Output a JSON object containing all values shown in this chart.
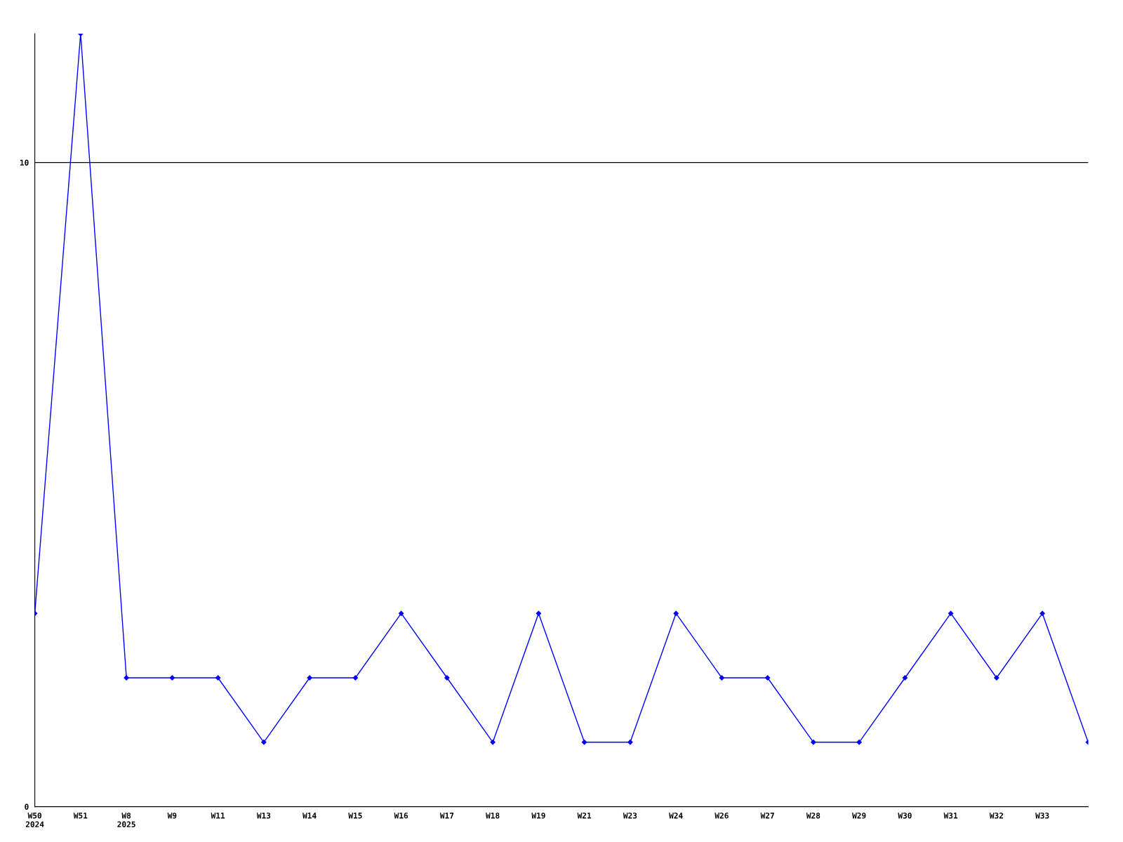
{
  "chart_data": {
    "type": "line",
    "categories": [
      "W50\n2024",
      "W51",
      "W8\n2025",
      "W9",
      "W11",
      "W13",
      "W14",
      "W15",
      "W16",
      "W17",
      "W18",
      "W19",
      "W21",
      "W23",
      "W24",
      "W26",
      "W27",
      "W28",
      "W29",
      "W30",
      "W31",
      "W32",
      "W33",
      null
    ],
    "series": [
      {
        "color": "#0000ff",
        "values": [
          3,
          12,
          2,
          2,
          2,
          1,
          2,
          2,
          3,
          2,
          1,
          3,
          1,
          1,
          3,
          2,
          2,
          1,
          1,
          2,
          3,
          2,
          3,
          1
        ]
      }
    ],
    "ylim": [
      0,
      12
    ],
    "yticks": [
      0,
      10
    ],
    "grid": "y",
    "marker": "diamond",
    "line_style": "solid",
    "legend": false
  }
}
